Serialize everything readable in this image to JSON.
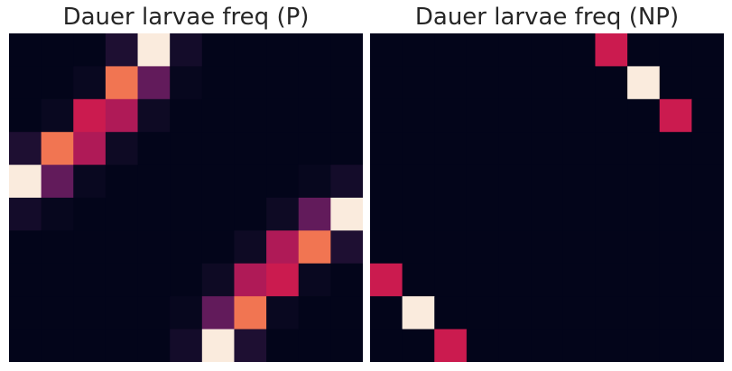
{
  "chart_data": [
    {
      "type": "heatmap",
      "title": "Dauer larvae freq (P)",
      "xlabel": "",
      "ylabel": "",
      "grid": false,
      "legend": "none",
      "colormap": "rocket",
      "vmin": 0,
      "vmax": 1,
      "rows": 10,
      "cols": 11,
      "values": [
        [
          0.0,
          0.0,
          0.0,
          0.12,
          1.0,
          0.08,
          0.0,
          0.0,
          0.0,
          0.0,
          0.0
        ],
        [
          0.0,
          0.0,
          0.03,
          0.72,
          0.3,
          0.02,
          0.0,
          0.0,
          0.0,
          0.0,
          0.0
        ],
        [
          0.0,
          0.03,
          0.5,
          0.45,
          0.05,
          0.0,
          0.0,
          0.0,
          0.0,
          0.0,
          0.0
        ],
        [
          0.12,
          0.72,
          0.45,
          0.05,
          0.0,
          0.0,
          0.0,
          0.0,
          0.0,
          0.0,
          0.0
        ],
        [
          1.0,
          0.3,
          0.03,
          0.0,
          0.0,
          0.0,
          0.0,
          0.0,
          0.0,
          0.02,
          0.08
        ],
        [
          0.08,
          0.02,
          0.0,
          0.0,
          0.0,
          0.0,
          0.0,
          0.0,
          0.05,
          0.3,
          1.0
        ],
        [
          0.0,
          0.0,
          0.0,
          0.0,
          0.0,
          0.0,
          0.0,
          0.05,
          0.45,
          0.72,
          0.12
        ],
        [
          0.0,
          0.0,
          0.0,
          0.0,
          0.0,
          0.0,
          0.05,
          0.45,
          0.5,
          0.03,
          0.0
        ],
        [
          0.0,
          0.0,
          0.0,
          0.0,
          0.0,
          0.02,
          0.3,
          0.72,
          0.03,
          0.0,
          0.0
        ],
        [
          0.0,
          0.0,
          0.0,
          0.0,
          0.0,
          0.08,
          1.0,
          0.12,
          0.0,
          0.0,
          0.0
        ]
      ]
    },
    {
      "type": "heatmap",
      "title": "Dauer larvae freq (NP)",
      "xlabel": "",
      "ylabel": "",
      "grid": false,
      "legend": "none",
      "colormap": "rocket",
      "vmin": 0,
      "vmax": 1,
      "rows": 10,
      "cols": 11,
      "values": [
        [
          0.0,
          0.0,
          0.0,
          0.0,
          0.0,
          0.0,
          0.0,
          0.5,
          0.0,
          0.0,
          0.0
        ],
        [
          0.0,
          0.0,
          0.0,
          0.0,
          0.0,
          0.0,
          0.0,
          0.0,
          1.0,
          0.0,
          0.0
        ],
        [
          0.0,
          0.0,
          0.0,
          0.0,
          0.0,
          0.0,
          0.0,
          0.0,
          0.0,
          0.5,
          0.0
        ],
        [
          0.0,
          0.0,
          0.0,
          0.0,
          0.0,
          0.0,
          0.0,
          0.0,
          0.0,
          0.0,
          0.0
        ],
        [
          0.0,
          0.0,
          0.0,
          0.0,
          0.0,
          0.0,
          0.0,
          0.0,
          0.0,
          0.0,
          0.0
        ],
        [
          0.0,
          0.0,
          0.0,
          0.0,
          0.0,
          0.0,
          0.0,
          0.0,
          0.0,
          0.0,
          0.0
        ],
        [
          0.0,
          0.0,
          0.0,
          0.0,
          0.0,
          0.0,
          0.0,
          0.0,
          0.0,
          0.0,
          0.0
        ],
        [
          0.5,
          0.0,
          0.0,
          0.0,
          0.0,
          0.0,
          0.0,
          0.0,
          0.0,
          0.0,
          0.0
        ],
        [
          0.0,
          1.0,
          0.0,
          0.0,
          0.0,
          0.0,
          0.0,
          0.0,
          0.0,
          0.0,
          0.0
        ],
        [
          0.0,
          0.0,
          0.5,
          0.0,
          0.0,
          0.0,
          0.0,
          0.0,
          0.0,
          0.0,
          0.0
        ]
      ]
    }
  ]
}
